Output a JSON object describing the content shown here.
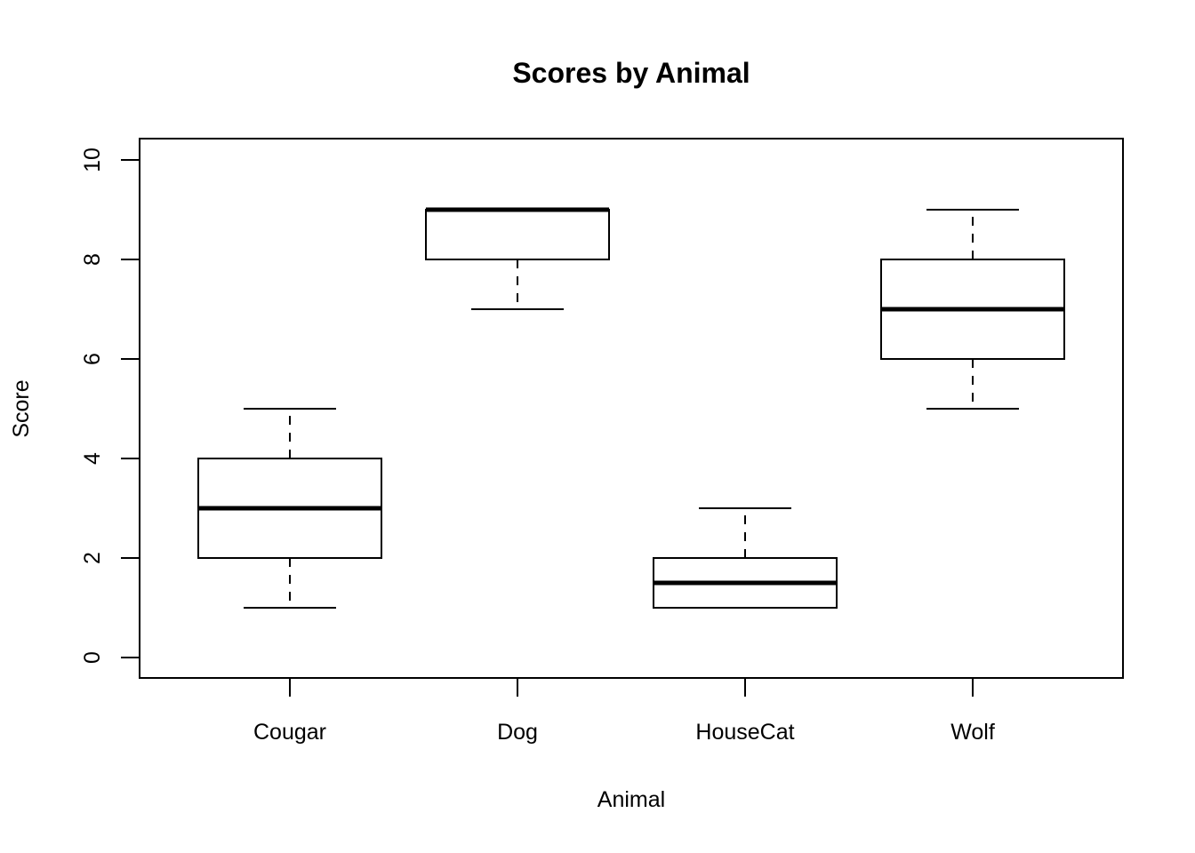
{
  "chart_data": {
    "type": "boxplot",
    "title": "Scores by Animal",
    "xlabel": "Animal",
    "ylabel": "Score",
    "categories": [
      "Cougar",
      "Dog",
      "HouseCat",
      "Wolf"
    ],
    "y_ticks": [
      "0",
      "2",
      "4",
      "6",
      "8",
      "10"
    ],
    "y_tick_values": [
      0,
      2,
      4,
      6,
      8,
      10
    ],
    "ylim": [
      0,
      10
    ],
    "grid": false,
    "legend": "none",
    "orientation": "vertical",
    "series": [
      {
        "name": "Cougar",
        "min": 1,
        "q1": 2,
        "median": 3,
        "q3": 4,
        "max": 5
      },
      {
        "name": "Dog",
        "min": 7,
        "q1": 8,
        "median": 9,
        "q3": 9,
        "max": 9
      },
      {
        "name": "HouseCat",
        "min": 1,
        "q1": 1,
        "median": 1.5,
        "q3": 2,
        "max": 3
      },
      {
        "name": "Wolf",
        "min": 5,
        "q1": 6,
        "median": 7,
        "q3": 8,
        "max": 9
      }
    ],
    "colors": {
      "box_stroke": "#000000",
      "box_fill": "#ffffff",
      "median": "#000000",
      "whisker": "#000000",
      "text": "#000000",
      "background": "#ffffff"
    }
  }
}
